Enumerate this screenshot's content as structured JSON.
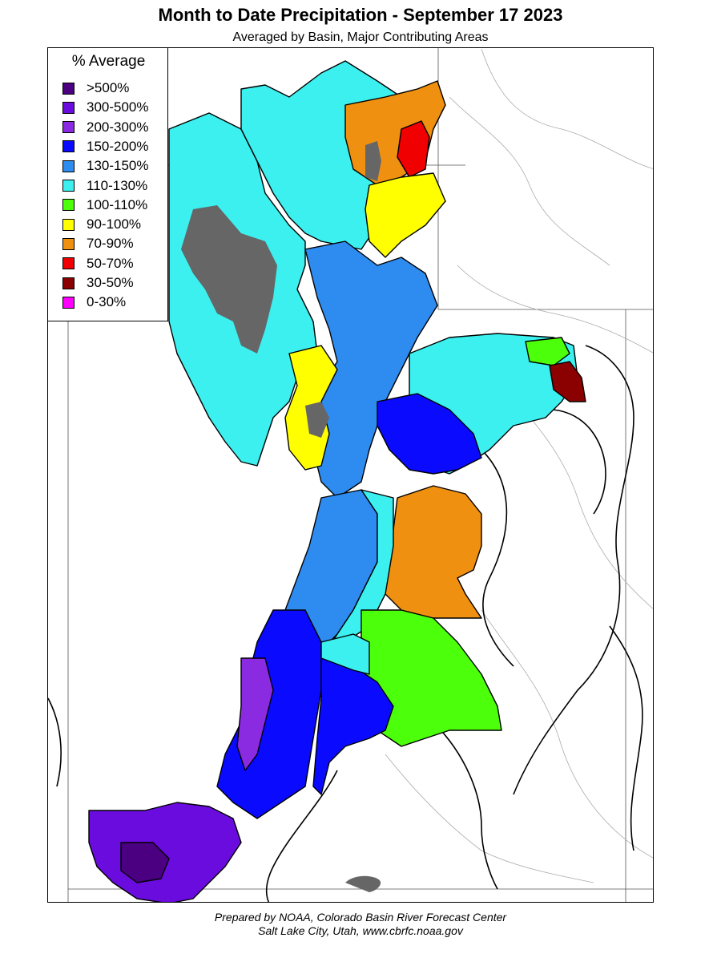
{
  "title": "Month to Date Precipitation - September 17 2023",
  "subtitle": "Averaged by Basin, Major Contributing Areas",
  "legend": {
    "title": "% Average",
    "items": [
      {
        "label": ">500%",
        "color": "#4b0082"
      },
      {
        "label": "300-500%",
        "color": "#6a0cde"
      },
      {
        "label": "200-300%",
        "color": "#8a2be2"
      },
      {
        "label": "150-200%",
        "color": "#0a0aff"
      },
      {
        "label": "130-150%",
        "color": "#2e8bf0"
      },
      {
        "label": "110-130%",
        "color": "#3cf0f0"
      },
      {
        "label": "100-110%",
        "color": "#4cff0a"
      },
      {
        "label": "90-100%",
        "color": "#ffff00"
      },
      {
        "label": "70-90%",
        "color": "#f09010"
      },
      {
        "label": "50-70%",
        "color": "#f00000"
      },
      {
        "label": "30-50%",
        "color": "#8b0000"
      },
      {
        "label": "0-30%",
        "color": "#ff00ff"
      }
    ]
  },
  "colors": {
    "no_data": "#666666",
    "boundary": "#000000",
    "river": "#999999"
  },
  "footer": {
    "line1": "Prepared by NOAA, Colorado Basin River Forecast Center",
    "line2": "Salt Lake City, Utah, www.cbrfc.noaa.gov"
  }
}
